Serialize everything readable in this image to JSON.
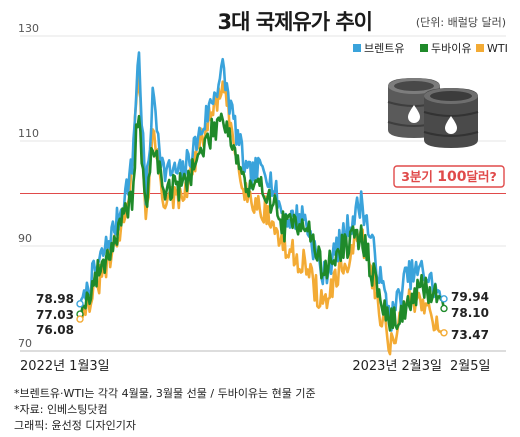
{
  "title": "3대 국제유가 추이",
  "unit_label": "(단위: 배럴당 달러)",
  "callout": {
    "prefix": "3분기 ",
    "emphasis": "100",
    "suffix": "달러?"
  },
  "notes": [
    "*브렌트유·WTI는 각각 4월물, 3월물 선물 / 두바이유는 현물 기준",
    "*자료: 인베스팅닷컴",
    "그래픽: 윤선정 디자인기자"
  ],
  "colors": {
    "brent": "#3aa3db",
    "dubai": "#1f8a2a",
    "wti": "#f3ab35",
    "reference": "#e04a4a",
    "barrel": "#555555"
  },
  "icons": [
    "oil-barrel-icon"
  ],
  "chart_data": {
    "type": "line",
    "title": "3대 국제유가 추이",
    "ylim": [
      70,
      130
    ],
    "yticks": [
      70,
      90,
      110,
      130
    ],
    "grid": "horizontal",
    "legend_position": "top-right",
    "reference_line": 100,
    "x_labels": [
      "2022년 1월3일",
      "2023년 2월3일",
      "2월5일"
    ],
    "x_dates": [
      "2022-01-03",
      "2023-02-03",
      "2023-02-05"
    ],
    "x_range": [
      "2022-01-03",
      "2023-02-05"
    ],
    "series": [
      {
        "name": "브렌트유",
        "color": "#3aa3db",
        "start_label": "78.98",
        "end_label": "79.94",
        "x": [
          "2022-01-03",
          "2022-01-24",
          "2022-02-14",
          "2022-03-01",
          "2022-03-08",
          "2022-03-16",
          "2022-03-24",
          "2022-04-04",
          "2022-04-25",
          "2022-05-16",
          "2022-06-08",
          "2022-06-20",
          "2022-07-05",
          "2022-07-25",
          "2022-08-15",
          "2022-09-05",
          "2022-09-26",
          "2022-10-17",
          "2022-11-07",
          "2022-11-28",
          "2022-12-09",
          "2022-12-26",
          "2023-01-13",
          "2023-02-03",
          "2023-02-05"
        ],
        "values": [
          78.98,
          86.8,
          95.2,
          105.1,
          127.5,
          98.6,
          119.1,
          104.4,
          103.8,
          112.1,
          123.6,
          113.9,
          103.2,
          105.2,
          95.1,
          95.7,
          84.1,
          91.6,
          98.5,
          83.2,
          76.1,
          84.3,
          85.3,
          79.9,
          79.94
        ]
      },
      {
        "name": "두바이유",
        "color": "#1f8a2a",
        "start_label": "77.03",
        "end_label": "78.10",
        "x": [
          "2022-01-03",
          "2022-01-24",
          "2022-02-14",
          "2022-03-01",
          "2022-03-08",
          "2022-03-16",
          "2022-03-24",
          "2022-04-04",
          "2022-04-25",
          "2022-05-16",
          "2022-06-08",
          "2022-06-20",
          "2022-07-05",
          "2022-07-25",
          "2022-08-15",
          "2022-09-05",
          "2022-09-26",
          "2022-10-17",
          "2022-11-07",
          "2022-11-28",
          "2022-12-09",
          "2022-12-26",
          "2023-01-13",
          "2023-02-03",
          "2023-02-05"
        ],
        "values": [
          77.03,
          85.3,
          92.5,
          99.4,
          116.6,
          96.3,
          110.1,
          100.8,
          101.5,
          107.9,
          115.4,
          109.0,
          100.5,
          101.0,
          93.4,
          95.3,
          85.1,
          89.7,
          92.1,
          79.4,
          75.4,
          78.3,
          82.1,
          80.1,
          78.1
        ]
      },
      {
        "name": "WTI",
        "color": "#f3ab35",
        "start_label": "76.08",
        "end_label": "73.47",
        "x": [
          "2022-01-03",
          "2022-01-24",
          "2022-02-14",
          "2022-03-01",
          "2022-03-08",
          "2022-03-16",
          "2022-03-24",
          "2022-04-04",
          "2022-04-25",
          "2022-05-16",
          "2022-06-08",
          "2022-06-20",
          "2022-07-05",
          "2022-07-25",
          "2022-08-15",
          "2022-09-05",
          "2022-09-26",
          "2022-10-17",
          "2022-11-07",
          "2022-11-28",
          "2022-12-09",
          "2022-12-26",
          "2023-01-13",
          "2023-02-03",
          "2023-02-05"
        ],
        "values": [
          76.08,
          83.3,
          91.1,
          103.4,
          123.7,
          95.0,
          112.3,
          99.3,
          98.5,
          110.3,
          120.4,
          109.6,
          99.5,
          96.7,
          89.4,
          86.9,
          78.5,
          85.5,
          91.8,
          77.2,
          71.0,
          79.5,
          79.9,
          73.4,
          73.47
        ]
      }
    ]
  }
}
